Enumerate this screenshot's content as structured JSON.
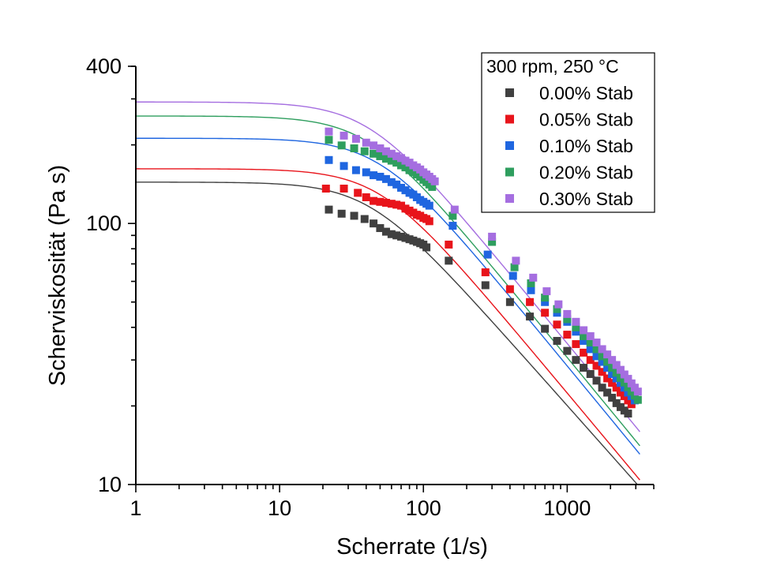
{
  "chart_data": {
    "type": "scatter",
    "title": "",
    "xlabel": "Scherrate (1/s)",
    "ylabel": "Scherviskosität (Pa s)",
    "x_scale": "log",
    "y_scale": "log",
    "xlim": [
      1,
      4000
    ],
    "ylim": [
      10,
      400
    ],
    "x_ticks": [
      {
        "value": 1,
        "label": "1"
      },
      {
        "value": 10,
        "label": "10"
      },
      {
        "value": 100,
        "label": "100"
      },
      {
        "value": 1000,
        "label": "1000"
      }
    ],
    "y_ticks": [
      {
        "value": 10,
        "label": "10"
      },
      {
        "value": 100,
        "label": "100"
      },
      {
        "value": 400,
        "label": "400"
      }
    ],
    "grid": false,
    "legend": {
      "title": "300 rpm, 250 °C",
      "position": "top-right"
    },
    "fit_x_range": [
      1,
      3200
    ],
    "series": [
      {
        "name": "0.00% Stab",
        "color": "#404040",
        "x": [
          22,
          27,
          33,
          39,
          45,
          50,
          55,
          60,
          65,
          70,
          75,
          80,
          85,
          90,
          95,
          100,
          105,
          150,
          270,
          400,
          550,
          700,
          850,
          1000,
          1150,
          1300,
          1450,
          1600,
          1750,
          1900,
          2050,
          2200,
          2350,
          2500,
          2650
        ],
        "y": [
          113,
          109,
          107,
          104,
          100,
          96,
          93,
          91,
          90,
          89,
          88,
          87,
          86,
          85,
          84,
          83,
          81,
          72,
          58,
          50,
          44,
          39.5,
          35.5,
          32.5,
          30,
          28,
          26.5,
          25,
          23.5,
          22.5,
          21.5,
          20.5,
          19.8,
          19.2,
          18.7
        ],
        "fit": {
          "eta0": 144,
          "lambda": 0.024,
          "n": 0.38
        }
      },
      {
        "name": "0.05% Stab",
        "color": "#e8141b",
        "x": [
          21,
          28,
          35,
          40,
          45,
          50,
          55,
          60,
          65,
          70,
          75,
          80,
          85,
          90,
          95,
          100,
          105,
          110,
          150,
          270,
          400,
          550,
          700,
          850,
          1000,
          1150,
          1300,
          1450,
          1600,
          1750,
          1900,
          2050,
          2200,
          2350,
          2500,
          2650,
          2800
        ],
        "y": [
          136,
          136,
          131,
          126,
          122,
          121,
          120,
          119,
          118,
          117,
          114,
          112,
          110,
          108,
          107,
          105,
          104,
          102,
          83,
          65,
          56,
          50,
          45.5,
          41,
          37.5,
          34.5,
          32,
          30,
          28.5,
          27,
          25.5,
          24.5,
          23.5,
          22.5,
          21.8,
          21,
          20.3
        ],
        "fit": {
          "eta0": 162,
          "lambda": 0.02,
          "n": 0.34
        }
      },
      {
        "name": "0.10% Stab",
        "color": "#1f66e0",
        "x": [
          22,
          28,
          34,
          40,
          45,
          50,
          55,
          60,
          65,
          70,
          75,
          80,
          85,
          90,
          95,
          100,
          105,
          110,
          160,
          280,
          420,
          560,
          700,
          850,
          1000,
          1150,
          1300,
          1450,
          1600,
          1750,
          1900,
          2050,
          2200,
          2350,
          2500,
          2650,
          2800,
          2950
        ],
        "y": [
          175,
          166,
          160,
          157,
          153,
          151,
          148,
          144,
          141,
          137,
          134,
          131,
          129,
          126,
          123,
          121,
          119,
          117,
          98,
          76,
          63,
          55.5,
          50,
          45.5,
          42,
          38.5,
          35.5,
          33,
          31,
          29.5,
          28,
          26.5,
          25.5,
          24.5,
          23.5,
          22.5,
          21.8,
          21
        ],
        "fit": {
          "eta0": 212,
          "lambda": 0.02,
          "n": 0.33
        }
      },
      {
        "name": "0.20% Stab",
        "color": "#2e9e5e",
        "x": [
          22,
          27,
          33,
          39,
          45,
          50,
          55,
          60,
          65,
          70,
          75,
          80,
          85,
          90,
          95,
          100,
          105,
          110,
          115,
          160,
          300,
          430,
          560,
          700,
          850,
          1000,
          1150,
          1300,
          1450,
          1600,
          1750,
          1900,
          2050,
          2200,
          2350,
          2500,
          2650,
          2800,
          2950,
          3100
        ],
        "y": [
          209,
          199,
          194,
          189,
          185,
          181,
          177,
          174,
          171,
          167,
          164,
          160,
          157,
          154,
          151,
          147,
          144,
          141,
          138,
          107,
          85,
          68,
          59,
          52,
          47,
          43,
          40,
          37,
          35,
          33,
          31,
          29.5,
          28,
          26.8,
          25.6,
          24.6,
          23.6,
          22.7,
          21.9,
          21.1
        ],
        "fit": {
          "eta0": 258,
          "lambda": 0.024,
          "n": 0.33
        }
      },
      {
        "name": "0.30% Stab",
        "color": "#a56ee0",
        "x": [
          22,
          28,
          34,
          40,
          45,
          50,
          55,
          60,
          65,
          70,
          75,
          80,
          85,
          90,
          95,
          100,
          105,
          110,
          115,
          120,
          165,
          300,
          440,
          580,
          720,
          870,
          1000,
          1150,
          1300,
          1450,
          1600,
          1750,
          1900,
          2050,
          2200,
          2350,
          2500,
          2650,
          2800,
          2950,
          3100
        ],
        "y": [
          225,
          217,
          211,
          204,
          199,
          194,
          189,
          185,
          181,
          178,
          174,
          171,
          167,
          164,
          161,
          157,
          154,
          151,
          148,
          145,
          113,
          89,
          72,
          62,
          55,
          49,
          45,
          42,
          39,
          37,
          35,
          33,
          31.5,
          30,
          28.7,
          27.5,
          26.4,
          25.4,
          24.4,
          23.5,
          22.7
        ],
        "fit": {
          "eta0": 292,
          "lambda": 0.024,
          "n": 0.33
        }
      }
    ]
  }
}
